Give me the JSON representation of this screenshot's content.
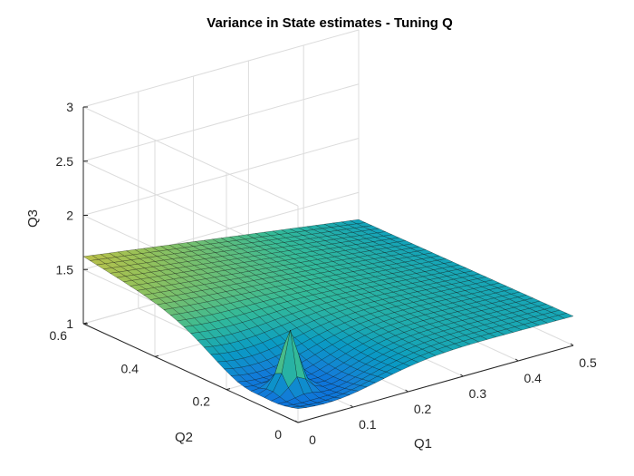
{
  "chart_data": {
    "type": "surface",
    "title": "Variance in State estimates - Tuning Q",
    "xlabel": "Q1",
    "ylabel": "Q2",
    "zlabel": "Q3",
    "xlim": [
      0,
      0.5
    ],
    "ylim": [
      0,
      0.6
    ],
    "zlim": [
      1,
      3
    ],
    "xticks": [
      "0",
      "0.1",
      "0.2",
      "0.3",
      "0.4",
      "0.5"
    ],
    "yticks": [
      "0",
      "0.2",
      "0.4",
      "0.6"
    ],
    "zticks": [
      "1",
      "1.5",
      "2",
      "2.5",
      "3"
    ],
    "grid": true,
    "colormap": "parula",
    "mesh_color": "#000000",
    "surface_samples": {
      "corner_x0_y0": 1.3,
      "corner_x0_y06": 1.62,
      "corner_x05_y0": 1.27,
      "corner_x05_y06": 1.25,
      "peak": {
        "x": 0.05,
        "y": 0.1,
        "z": 1.98
      },
      "min_z": 1.02
    }
  }
}
